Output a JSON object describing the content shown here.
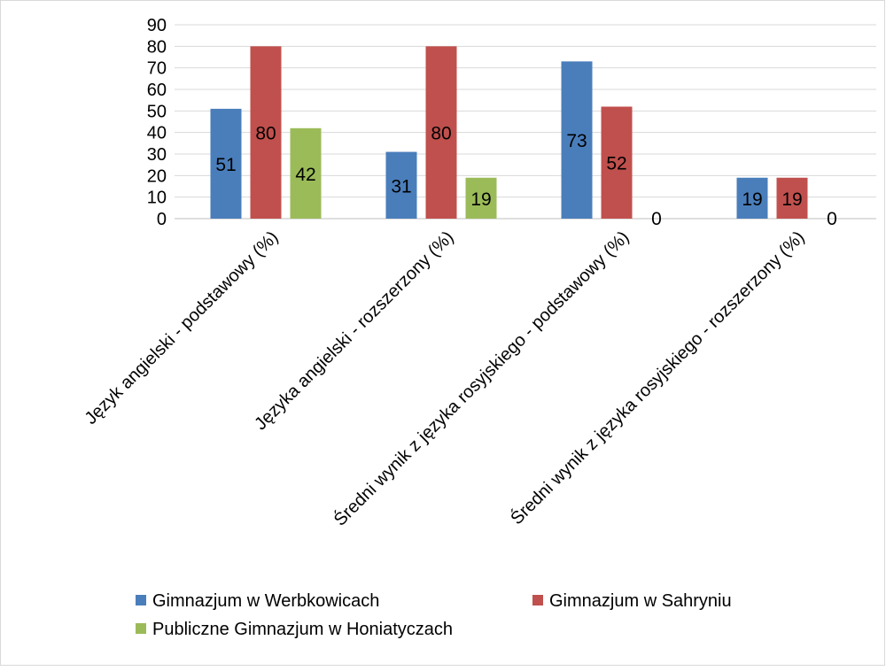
{
  "chart_data": {
    "type": "bar",
    "title": "",
    "xlabel": "",
    "ylabel": "",
    "ylim": [
      0,
      90
    ],
    "yticks": [
      0,
      10,
      20,
      30,
      40,
      50,
      60,
      70,
      80,
      90
    ],
    "grid": true,
    "legend_position": "bottom",
    "categories": [
      "Język angielski - podstawowy (%)",
      "Języka angielski - rozszerzony (%)",
      "Średni wynik z języka rosyjskiego - podstawowy (%)",
      "Średni wynik z języka rosyjskiego - rozszerzony (%)"
    ],
    "series": [
      {
        "name": "Gimnazjum w Werbkowicach",
        "color": "#4a7ebb",
        "values": [
          51,
          31,
          73,
          19
        ]
      },
      {
        "name": "Gimnazjum w Sahryniu",
        "color": "#c0504d",
        "values": [
          80,
          80,
          52,
          19
        ]
      },
      {
        "name": "Publiczne Gimnazjum w Honiatyczach",
        "color": "#9bbb59",
        "values": [
          42,
          19,
          0,
          0
        ]
      }
    ]
  }
}
